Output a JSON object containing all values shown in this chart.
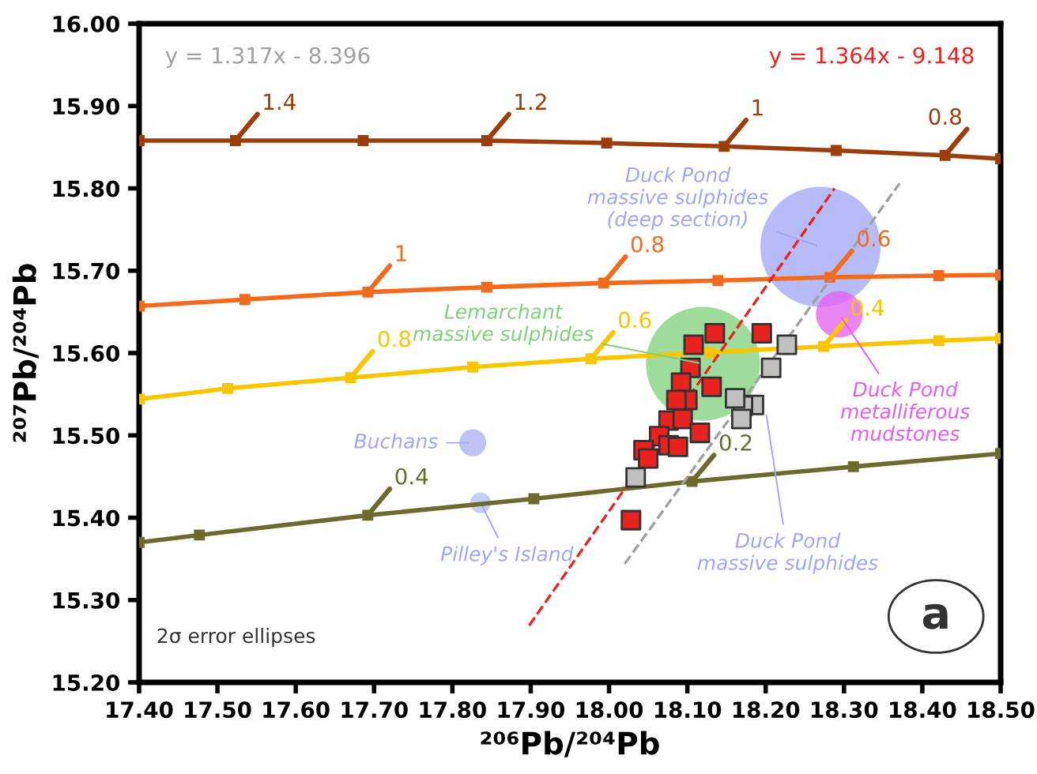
{
  "chart_data": {
    "type": "scatter",
    "xlabel": "²⁰⁶Pb/²⁰⁴Pb",
    "ylabel": "²⁰⁷Pb/²⁰⁴Pb",
    "xlim": [
      17.4,
      18.5
    ],
    "ylim": [
      15.2,
      16.0
    ],
    "xticks": [
      {
        "value": 17.4,
        "label": "17.40"
      },
      {
        "value": 17.5,
        "label": "17.50"
      },
      {
        "value": 17.6,
        "label": "17.60"
      },
      {
        "value": 17.7,
        "label": "17.70"
      },
      {
        "value": 17.8,
        "label": "17.80"
      },
      {
        "value": 17.9,
        "label": "17.90"
      },
      {
        "value": 18.0,
        "label": "18.00"
      },
      {
        "value": 18.1,
        "label": "18.10"
      },
      {
        "value": 18.2,
        "label": "18.20"
      },
      {
        "value": 18.3,
        "label": "18.30"
      },
      {
        "value": 18.4,
        "label": "18.40"
      },
      {
        "value": 18.5,
        "label": "18.50"
      }
    ],
    "yticks": [
      {
        "value": 15.2,
        "label": "15.20"
      },
      {
        "value": 15.3,
        "label": "15.30"
      },
      {
        "value": 15.4,
        "label": "15.40"
      },
      {
        "value": 15.5,
        "label": "15.50"
      },
      {
        "value": 15.6,
        "label": "15.60"
      },
      {
        "value": 15.7,
        "label": "15.70"
      },
      {
        "value": 15.8,
        "label": "15.80"
      },
      {
        "value": 15.9,
        "label": "15.90"
      },
      {
        "value": 16.0,
        "label": "16.00"
      }
    ],
    "grid": false,
    "legend": false,
    "series": [
      {
        "type": "line",
        "color": "#9c3d0c",
        "marker": "square",
        "x": [
          17.4,
          17.523,
          17.686,
          17.844,
          17.997,
          18.147,
          18.29,
          18.429,
          18.5
        ],
        "values": [
          15.858,
          15.858,
          15.858,
          15.858,
          15.855,
          15.851,
          15.846,
          15.84,
          15.836
        ]
      },
      {
        "type": "line",
        "color": "#f26b1d",
        "marker": "square",
        "x": [
          17.4,
          17.535,
          17.692,
          17.844,
          17.993,
          18.139,
          18.282,
          18.421,
          18.5
        ],
        "values": [
          15.657,
          15.665,
          15.674,
          15.68,
          15.685,
          15.688,
          15.692,
          15.694,
          15.695
        ]
      },
      {
        "type": "line",
        "color": "#f7c600",
        "marker": "square",
        "x": [
          17.4,
          17.513,
          17.67,
          17.826,
          17.977,
          18.129,
          18.274,
          18.421,
          18.5
        ],
        "values": [
          15.544,
          15.557,
          15.57,
          15.583,
          15.593,
          15.601,
          15.608,
          15.615,
          15.618
        ]
      },
      {
        "type": "line",
        "color": "#6b6b2e",
        "marker": "square",
        "x": [
          17.4,
          17.477,
          17.692,
          17.904,
          18.106,
          18.312,
          18.5
        ],
        "values": [
          15.37,
          15.379,
          15.403,
          15.423,
          15.444,
          15.462,
          15.478
        ]
      },
      {
        "type": "bubble",
        "x": [
          18.27,
          18.12,
          18.294,
          17.826,
          17.836
        ],
        "values": [
          15.729,
          15.587,
          15.647,
          15.491,
          15.418
        ],
        "sizes": [
          1,
          0.9,
          0.15,
          0.05,
          0.03
        ],
        "colors": [
          "#9fa6f5",
          "#7fd07a",
          "#e65cf0",
          "#a9aef0",
          "#b8bcee"
        ]
      },
      {
        "marker": "square",
        "color": "#c0c0c0",
        "x": [
          18.227,
          18.207,
          18.185,
          18.171,
          18.161,
          18.169,
          18.034
        ],
        "values": [
          15.61,
          15.582,
          15.537,
          15.536,
          15.545,
          15.52,
          15.449
        ]
      },
      {
        "marker": "square",
        "color": "#e8221f",
        "x": [
          18.135,
          18.195,
          18.108,
          18.104,
          18.092,
          18.131,
          18.1,
          18.086,
          18.076,
          18.094,
          18.116,
          18.064,
          18.076,
          18.044,
          18.05,
          18.088,
          18.028
        ],
        "values": [
          15.624,
          15.624,
          15.61,
          15.582,
          15.564,
          15.559,
          15.543,
          15.543,
          15.518,
          15.52,
          15.503,
          15.499,
          15.488,
          15.482,
          15.472,
          15.486,
          15.397
        ]
      },
      {
        "type": "line",
        "name": "y = 1.317x - 8.396",
        "color": "#a0a0a0",
        "line_style": "dashed",
        "x": [
          18.02,
          18.371
        ],
        "values": [
          15.344,
          15.806
        ]
      },
      {
        "type": "line",
        "name": "y = 1.364x - 9.148",
        "color": "#e8221f",
        "line_style": "dashed",
        "x": [
          17.898,
          18.288
        ],
        "values": [
          15.269,
          15.8
        ]
      }
    ],
    "annotations": [
      {
        "text": "1.4",
        "x": 17.523,
        "y": 15.858
      },
      {
        "text": "1.2",
        "x": 17.844,
        "y": 15.858
      },
      {
        "text": "1",
        "x": 18.147,
        "y": 15.851
      },
      {
        "text": "0.8",
        "x": 18.429,
        "y": 15.84
      },
      {
        "text": "1",
        "x": 17.692,
        "y": 15.674
      },
      {
        "text": "0.8",
        "x": 17.993,
        "y": 15.685
      },
      {
        "text": "0.6",
        "x": 18.282,
        "y": 15.692
      },
      {
        "text": "0.8",
        "x": 17.67,
        "y": 15.57
      },
      {
        "text": "0.6",
        "x": 17.977,
        "y": 15.593
      },
      {
        "text": "0.4",
        "x": 18.274,
        "y": 15.608
      },
      {
        "text": "0.4",
        "x": 17.692,
        "y": 15.403
      },
      {
        "text": "0.2",
        "x": 18.106,
        "y": 15.444
      },
      {
        "text": "Duck Pond\nmassive sulphides\n(deep section)",
        "x": 18.27,
        "y": 15.729
      },
      {
        "text": "Lemarchant\nmassive sulphides",
        "x": 18.12,
        "y": 15.587
      },
      {
        "text": "Duck Pond\nmetalliferous\nmudstones",
        "x": 18.294,
        "y": 15.647
      },
      {
        "text": "Buchans",
        "x": 17.826,
        "y": 15.491
      },
      {
        "text": "Pilley's Island",
        "x": 17.836,
        "y": 15.418
      },
      {
        "text": "Duck Pond\nmassive sulphides",
        "x": 18.2,
        "y": 15.53
      },
      "2σ error ellipses",
      "a"
    ]
  }
}
